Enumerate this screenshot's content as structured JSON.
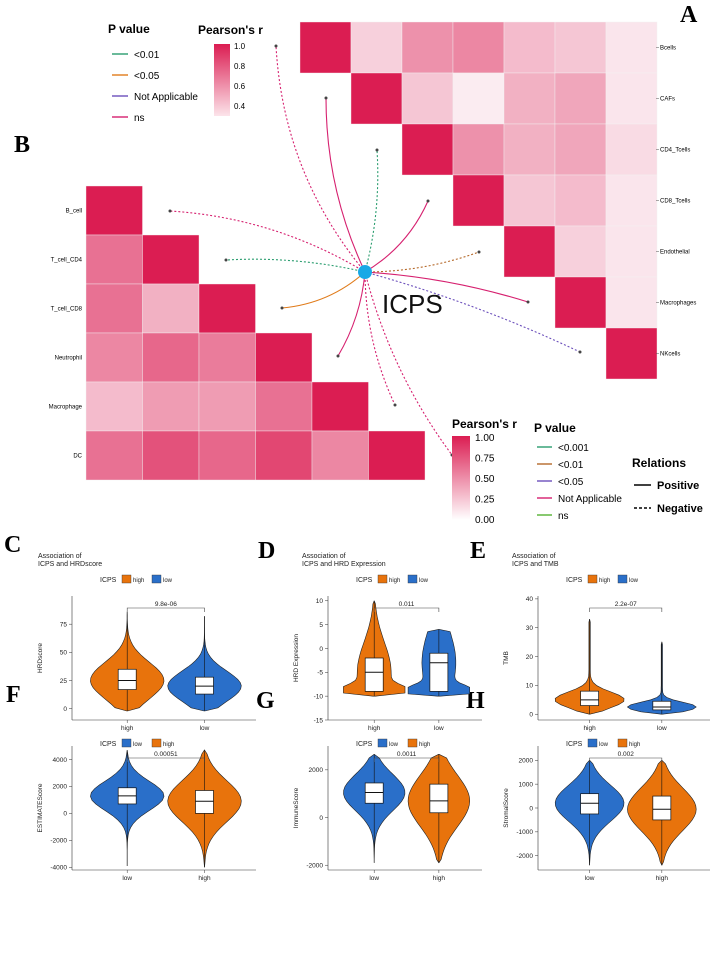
{
  "panels": {
    "A": "A",
    "B": "B",
    "C": "C",
    "D": "D",
    "E": "E",
    "F": "F",
    "G": "G",
    "H": "H"
  },
  "network": {
    "center_label": "ICPS",
    "pvalue_legend_A": {
      "title": "P value",
      "items": [
        {
          "label": "<0.01",
          "color": "#2a9d6f",
          "dash": true
        },
        {
          "label": "<0.05",
          "color": "#e07b1a",
          "dash": false
        },
        {
          "label": "Not Applicable",
          "color": "#6b4fbb",
          "dash": false
        },
        {
          "label": "ns",
          "color": "#d6206f",
          "dash": false
        }
      ]
    },
    "colorbar_A": {
      "title": "Pearson's r",
      "ticks": [
        "1.0",
        "0.8",
        "0.6",
        "0.4"
      ]
    },
    "pvalue_legend_B": {
      "title": "P value",
      "items": [
        {
          "label": "<0.001",
          "color": "#2a9d6f"
        },
        {
          "label": "<0.01",
          "color": "#b5692a"
        },
        {
          "label": "<0.05",
          "color": "#6b4fbb"
        },
        {
          "label": "Not Applicable",
          "color": "#d6206f"
        },
        {
          "label": "ns",
          "color": "#55b233"
        }
      ]
    },
    "colorbar_B": {
      "title": "Pearson's r",
      "ticks": [
        "1.00",
        "0.75",
        "0.50",
        "0.25",
        "0.00"
      ]
    },
    "relations": {
      "title": "Relations",
      "items": [
        {
          "label": "Positive",
          "dash": false
        },
        {
          "label": "Negative",
          "dash": true
        }
      ]
    }
  },
  "heatmap_A": {
    "labels": [
      "Bcells",
      "CAFs",
      "CD4_Tcells",
      "CD8_Tcells",
      "Endothelial",
      "Macrophages",
      "NKcells"
    ],
    "r": [
      [
        1.0,
        0.15,
        0.45,
        0.5,
        0.25,
        0.2,
        0.05
      ],
      [
        null,
        1.0,
        0.2,
        0.02,
        0.3,
        0.35,
        0.05
      ],
      [
        null,
        null,
        1.0,
        0.45,
        0.3,
        0.35,
        0.1
      ],
      [
        null,
        null,
        null,
        1.0,
        0.2,
        0.25,
        0.05
      ],
      [
        null,
        null,
        null,
        null,
        1.0,
        0.15,
        0.05
      ],
      [
        null,
        null,
        null,
        null,
        null,
        1.0,
        0.05
      ],
      [
        null,
        null,
        null,
        null,
        null,
        null,
        1.0
      ]
    ]
  },
  "heatmap_B": {
    "labels": [
      "B_cell",
      "T_cell_CD4",
      "T_cell_CD8",
      "Neutrophil",
      "Macrophage",
      "DC"
    ],
    "r": [
      [
        1.0,
        null,
        null,
        null,
        null,
        null
      ],
      [
        0.6,
        1.0,
        null,
        null,
        null,
        null
      ],
      [
        0.6,
        0.3,
        1.0,
        null,
        null,
        null
      ],
      [
        0.5,
        0.65,
        0.55,
        1.0,
        null,
        null
      ],
      [
        0.25,
        0.4,
        0.4,
        0.6,
        1.0,
        null
      ],
      [
        0.6,
        0.75,
        0.65,
        0.8,
        0.5,
        1.0
      ]
    ]
  },
  "chart_data": [
    {
      "type": "violin",
      "panel": "C",
      "title": "Association of\nICPS and HRDscore",
      "legend_title": "ICPS",
      "legend": [
        {
          "name": "high",
          "color": "#e8730c"
        },
        {
          "name": "low",
          "color": "#2a6fc9"
        }
      ],
      "categories": [
        "high",
        "low"
      ],
      "ylabel": "HRDscore",
      "ylim": [
        -10,
        100
      ],
      "yticks": [
        0,
        25,
        50,
        75
      ],
      "pvalue": "9.8e-06",
      "groups": [
        {
          "name": "high",
          "color": "#e8730c",
          "min": -2,
          "q1": 17,
          "median": 25,
          "q3": 35,
          "max": 86
        },
        {
          "name": "low",
          "color": "#2a6fc9",
          "min": -2,
          "q1": 13,
          "median": 20,
          "q3": 28,
          "max": 82
        }
      ]
    },
    {
      "type": "violin",
      "panel": "D",
      "title": "Association of\nICPS and HRD Expression",
      "legend_title": "ICPS",
      "legend": [
        {
          "name": "high",
          "color": "#e8730c"
        },
        {
          "name": "low",
          "color": "#2a6fc9"
        }
      ],
      "categories": [
        "high",
        "low"
      ],
      "ylabel": "HRD Expression",
      "ylim": [
        -15,
        11
      ],
      "yticks": [
        -15,
        -10,
        -5,
        0,
        5,
        10
      ],
      "pvalue": "0.011",
      "groups": [
        {
          "name": "high",
          "color": "#e8730c",
          "min": -10,
          "q1": -9,
          "median": -5,
          "q3": -2,
          "max": 10
        },
        {
          "name": "low",
          "color": "#2a6fc9",
          "min": -10,
          "q1": -9,
          "median": -3,
          "q3": -1,
          "max": 4
        }
      ]
    },
    {
      "type": "violin",
      "panel": "E",
      "title": "Association of\nICPS and TMB",
      "legend_title": "ICPS",
      "legend": [
        {
          "name": "high",
          "color": "#e8730c"
        },
        {
          "name": "low",
          "color": "#2a6fc9"
        }
      ],
      "categories": [
        "high",
        "low"
      ],
      "ylabel": "TMB",
      "ylim": [
        -2,
        41
      ],
      "yticks": [
        0,
        10,
        20,
        30,
        40
      ],
      "pvalue": "2.2e-07",
      "groups": [
        {
          "name": "high",
          "color": "#e8730c",
          "min": 0,
          "q1": 3,
          "median": 5,
          "q3": 8,
          "max": 33
        },
        {
          "name": "low",
          "color": "#2a6fc9",
          "min": 0,
          "q1": 1.5,
          "median": 2.5,
          "q3": 4.5,
          "max": 25
        }
      ]
    },
    {
      "type": "violin",
      "panel": "F",
      "title": "",
      "legend_title": "ICPS",
      "legend": [
        {
          "name": "low",
          "color": "#2a6fc9"
        },
        {
          "name": "high",
          "color": "#e8730c"
        }
      ],
      "categories": [
        "low",
        "high"
      ],
      "ylabel": "ESTIMATEScore",
      "ylim": [
        -4200,
        5000
      ],
      "yticks": [
        -4000,
        -2000,
        0,
        2000,
        4000
      ],
      "pvalue": "0.00051",
      "groups": [
        {
          "name": "low",
          "color": "#2a6fc9",
          "min": -3900,
          "q1": 700,
          "median": 1300,
          "q3": 1900,
          "max": 4700
        },
        {
          "name": "high",
          "color": "#e8730c",
          "min": -4000,
          "q1": 0,
          "median": 900,
          "q3": 1700,
          "max": 4700
        }
      ]
    },
    {
      "type": "violin",
      "panel": "G",
      "title": "",
      "legend_title": "ICPS",
      "legend": [
        {
          "name": "low",
          "color": "#2a6fc9"
        },
        {
          "name": "high",
          "color": "#e8730c"
        }
      ],
      "categories": [
        "low",
        "high"
      ],
      "ylabel": "ImmuneScore",
      "ylim": [
        -2200,
        3000
      ],
      "yticks": [
        -2000,
        0,
        2000
      ],
      "pvalue": "0.0011",
      "groups": [
        {
          "name": "low",
          "color": "#2a6fc9",
          "min": -1900,
          "q1": 600,
          "median": 1050,
          "q3": 1450,
          "max": 2650
        },
        {
          "name": "high",
          "color": "#e8730c",
          "min": -1900,
          "q1": 200,
          "median": 700,
          "q3": 1400,
          "max": 2650
        }
      ]
    },
    {
      "type": "violin",
      "panel": "H",
      "title": "",
      "legend_title": "ICPS",
      "legend": [
        {
          "name": "low",
          "color": "#2a6fc9"
        },
        {
          "name": "high",
          "color": "#e8730c"
        }
      ],
      "categories": [
        "low",
        "high"
      ],
      "ylabel": "StromalScore",
      "ylim": [
        -2600,
        2600
      ],
      "yticks": [
        -2000,
        -1000,
        0,
        1000,
        2000
      ],
      "pvalue": "0.002",
      "groups": [
        {
          "name": "low",
          "color": "#2a6fc9",
          "min": -2400,
          "q1": -250,
          "median": 200,
          "q3": 600,
          "max": 2000
        },
        {
          "name": "high",
          "color": "#e8730c",
          "min": -2400,
          "q1": -500,
          "median": -50,
          "q3": 500,
          "max": 2000
        }
      ]
    }
  ]
}
